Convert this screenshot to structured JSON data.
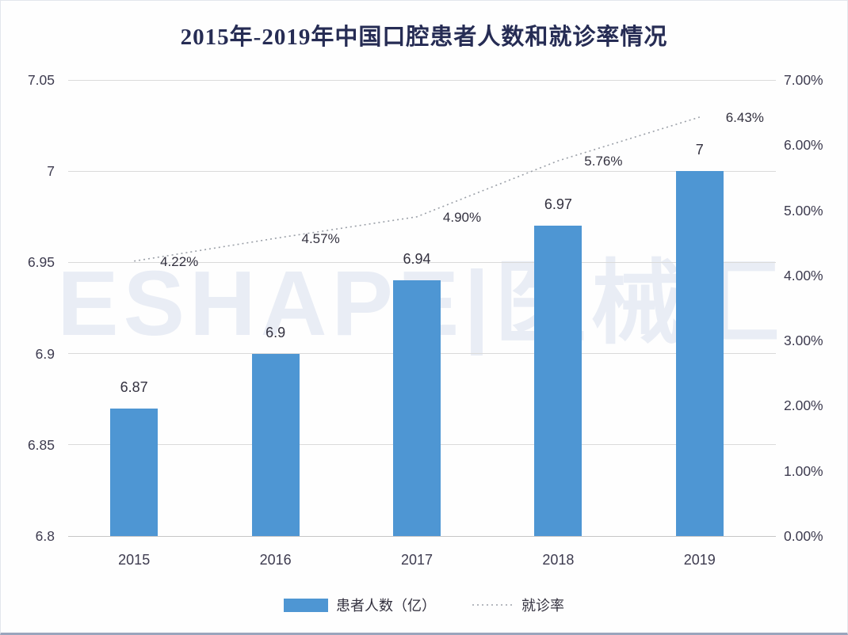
{
  "watermark": "ESHAPE|医械汇",
  "chart_data": {
    "type": "bar",
    "title": "2015年-2019年中国口腔患者人数和就诊率情况",
    "categories": [
      "2015",
      "2016",
      "2017",
      "2018",
      "2019"
    ],
    "series": [
      {
        "name": "患者人数（亿）",
        "type": "bar",
        "axis": "left",
        "values": [
          6.87,
          6.9,
          6.94,
          6.97,
          7
        ],
        "labels": [
          "6.87",
          "6.9",
          "6.94",
          "6.97",
          "7"
        ]
      },
      {
        "name": "就诊率",
        "type": "line",
        "line_style": "dotted",
        "axis": "right",
        "values": [
          4.22,
          4.57,
          4.9,
          5.76,
          6.43
        ],
        "labels": [
          "4.22%",
          "4.57%",
          "4.90%",
          "5.76%",
          "6.43%"
        ]
      }
    ],
    "left_axis": {
      "min": 6.8,
      "max": 7.05,
      "ticks": [
        "7.05",
        "7",
        "6.95",
        "6.9",
        "6.85",
        "6.8"
      ]
    },
    "right_axis": {
      "min": 0,
      "max": 7,
      "ticks": [
        "7.00%",
        "6.00%",
        "5.00%",
        "4.00%",
        "3.00%",
        "2.00%",
        "1.00%",
        "0.00%"
      ]
    },
    "grid": true,
    "legend_position": "bottom"
  },
  "colors": {
    "bar": "#4E96D3",
    "title": "#262C54",
    "text": "#3D3B4F",
    "data_label": "#33313F",
    "grid": "#DADADA",
    "axis_line": "#C6C6C6",
    "dotted_line": "#9BA0A8",
    "watermark": "#E9EDF5"
  }
}
